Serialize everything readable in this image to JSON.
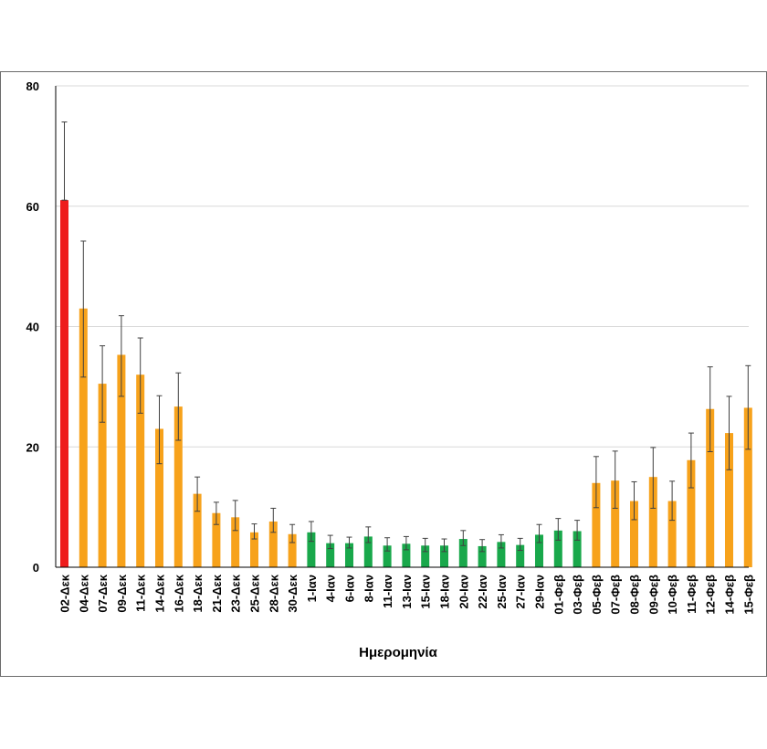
{
  "chart_data": {
    "type": "bar",
    "title": "",
    "xlabel": "Ημερομηνία",
    "ylabel": "",
    "ylim": [
      0,
      80
    ],
    "yticks": [
      0,
      20,
      40,
      60,
      80
    ],
    "grid": true,
    "categories": [
      "02-Δεκ",
      "04-Δεκ",
      "07-Δεκ",
      "09-Δεκ",
      "11-Δεκ",
      "14-Δεκ",
      "16-Δεκ",
      "18-Δεκ",
      "21-Δεκ",
      "23-Δεκ",
      "25-Δεκ",
      "28-Δεκ",
      "30-Δεκ",
      "1-Ιαν",
      "4-Ιαν",
      "6-Ιαν",
      "8-Ιαν",
      "11-Ιαν",
      "13-Ιαν",
      "15-Ιαν",
      "18-Ιαν",
      "20-Ιαν",
      "22-Ιαν",
      "25-Ιαν",
      "27-Ιαν",
      "29-Ιαν",
      "01-Φεβ",
      "03-Φεβ",
      "05-Φεβ",
      "07-Φεβ",
      "08-Φεβ",
      "09-Φεβ",
      "10-Φεβ",
      "11-Φεβ",
      "12-Φεβ",
      "14-Φεβ",
      "15-Φεβ"
    ],
    "values": [
      61,
      43,
      30.5,
      35.3,
      32,
      23,
      26.7,
      12.2,
      9,
      8.3,
      5.8,
      7.6,
      5.5,
      5.8,
      4,
      4,
      5.1,
      3.6,
      3.9,
      3.6,
      3.6,
      4.7,
      3.5,
      4.2,
      3.7,
      5.4,
      6.1,
      6,
      14,
      14.4,
      11,
      15,
      11,
      17.8,
      26.3,
      22.3,
      26.5
    ],
    "error_upper": [
      74,
      54.2,
      36.8,
      41.8,
      38.1,
      28.5,
      32.3,
      15,
      10.8,
      11.1,
      7.2,
      9.8,
      7.1,
      7.6,
      5.3,
      5,
      6.7,
      4.9,
      5.1,
      4.8,
      4.7,
      6.1,
      4.6,
      5.4,
      4.8,
      7.1,
      8.1,
      7.8,
      18.4,
      19.3,
      14.2,
      19.9,
      14.3,
      22.3,
      33.3,
      28.4,
      33.5
    ],
    "error_lower": [
      61,
      31.6,
      24.1,
      28.4,
      25.6,
      17.2,
      21.1,
      9.3,
      7.1,
      6.1,
      4.7,
      5.8,
      4.1,
      4.3,
      3.1,
      3.2,
      4.1,
      2.7,
      2.9,
      2.6,
      2.6,
      3.6,
      2.6,
      3.2,
      2.8,
      4.1,
      4.5,
      4.5,
      9.9,
      9.8,
      7.9,
      9.8,
      7.8,
      13.2,
      19.2,
      16.2,
      19.6
    ],
    "colors": [
      "#ee1c1c",
      "#f7a21b",
      "#f7a21b",
      "#f7a21b",
      "#f7a21b",
      "#f7a21b",
      "#f7a21b",
      "#f7a21b",
      "#f7a21b",
      "#f7a21b",
      "#f7a21b",
      "#f7a21b",
      "#f7a21b",
      "#19a84b",
      "#19a84b",
      "#19a84b",
      "#19a84b",
      "#19a84b",
      "#19a84b",
      "#19a84b",
      "#19a84b",
      "#19a84b",
      "#19a84b",
      "#19a84b",
      "#19a84b",
      "#19a84b",
      "#19a84b",
      "#19a84b",
      "#f7a21b",
      "#f7a21b",
      "#f7a21b",
      "#f7a21b",
      "#f7a21b",
      "#f7a21b",
      "#f7a21b",
      "#f7a21b",
      "#f7a21b"
    ],
    "palette": {
      "red": "#ee1c1c",
      "orange": "#f7a21b",
      "green": "#19a84b"
    }
  }
}
